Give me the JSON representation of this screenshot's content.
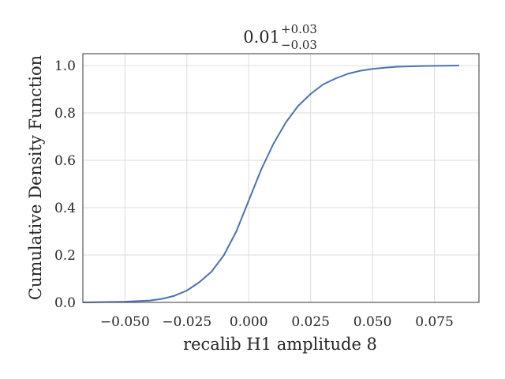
{
  "chart_data": {
    "type": "line",
    "title": {
      "value": "0.01",
      "plus": "+0.03",
      "minus": "−0.03"
    },
    "xlabel": "recalib H1 amplitude 8",
    "ylabel": "Cumulative Density Function",
    "xlim": [
      -0.067,
      0.093
    ],
    "ylim": [
      0.0,
      1.05
    ],
    "xticks": [
      -0.05,
      -0.025,
      0.0,
      0.025,
      0.05,
      0.075
    ],
    "xtick_labels": [
      "−0.050",
      "−0.025",
      "0.000",
      "0.025",
      "0.050",
      "0.075"
    ],
    "yticks": [
      0.0,
      0.2,
      0.4,
      0.6,
      0.8,
      1.0
    ],
    "ytick_labels": [
      "0.0",
      "0.2",
      "0.4",
      "0.6",
      "0.8",
      "1.0"
    ],
    "grid": true,
    "line_color": "#4c72b0",
    "series": [
      {
        "x": [
          -0.067,
          -0.05,
          -0.04,
          -0.035,
          -0.03,
          -0.025,
          -0.02,
          -0.015,
          -0.01,
          -0.005,
          0.0,
          0.005,
          0.01,
          0.015,
          0.02,
          0.025,
          0.03,
          0.035,
          0.04,
          0.045,
          0.05,
          0.055,
          0.06,
          0.07,
          0.085
        ],
        "y": [
          0.0,
          0.003,
          0.008,
          0.015,
          0.028,
          0.05,
          0.085,
          0.13,
          0.2,
          0.3,
          0.43,
          0.56,
          0.67,
          0.76,
          0.83,
          0.88,
          0.92,
          0.945,
          0.965,
          0.978,
          0.986,
          0.991,
          0.995,
          0.998,
          1.0
        ]
      }
    ]
  }
}
